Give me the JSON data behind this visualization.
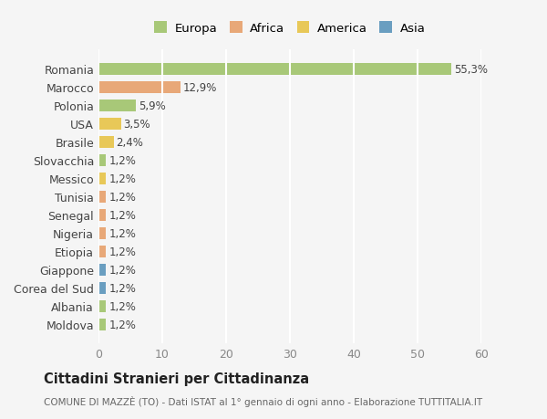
{
  "categories": [
    "Moldova",
    "Albania",
    "Corea del Sud",
    "Giappone",
    "Etiopia",
    "Nigeria",
    "Senegal",
    "Tunisia",
    "Messico",
    "Slovacchia",
    "Brasile",
    "USA",
    "Polonia",
    "Marocco",
    "Romania"
  ],
  "values": [
    1.2,
    1.2,
    1.2,
    1.2,
    1.2,
    1.2,
    1.2,
    1.2,
    1.2,
    1.2,
    2.4,
    3.5,
    5.9,
    12.9,
    55.3
  ],
  "labels": [
    "1,2%",
    "1,2%",
    "1,2%",
    "1,2%",
    "1,2%",
    "1,2%",
    "1,2%",
    "1,2%",
    "1,2%",
    "1,2%",
    "2,4%",
    "3,5%",
    "5,9%",
    "12,9%",
    "55,3%"
  ],
  "colors": [
    "#a8c878",
    "#a8c878",
    "#6a9ec0",
    "#6a9ec0",
    "#e8a878",
    "#e8a878",
    "#e8a878",
    "#e8a878",
    "#e8c858",
    "#a8c878",
    "#e8c858",
    "#e8c858",
    "#a8c878",
    "#e8a878",
    "#a8c878"
  ],
  "continent_colors": {
    "Europa": "#a8c878",
    "Africa": "#e8a878",
    "America": "#e8c858",
    "Asia": "#6a9ec0"
  },
  "legend_labels": [
    "Europa",
    "Africa",
    "America",
    "Asia"
  ],
  "title": "Cittadini Stranieri per Cittadinanza",
  "subtitle": "COMUNE DI MAZZÈ (TO) - Dati ISTAT al 1° gennaio di ogni anno - Elaborazione TUTTITALIA.IT",
  "xlim": [
    0,
    60
  ],
  "xticks": [
    0,
    10,
    20,
    30,
    40,
    50,
    60
  ],
  "background_color": "#f5f5f5",
  "grid_color": "#ffffff",
  "bar_height": 0.65
}
